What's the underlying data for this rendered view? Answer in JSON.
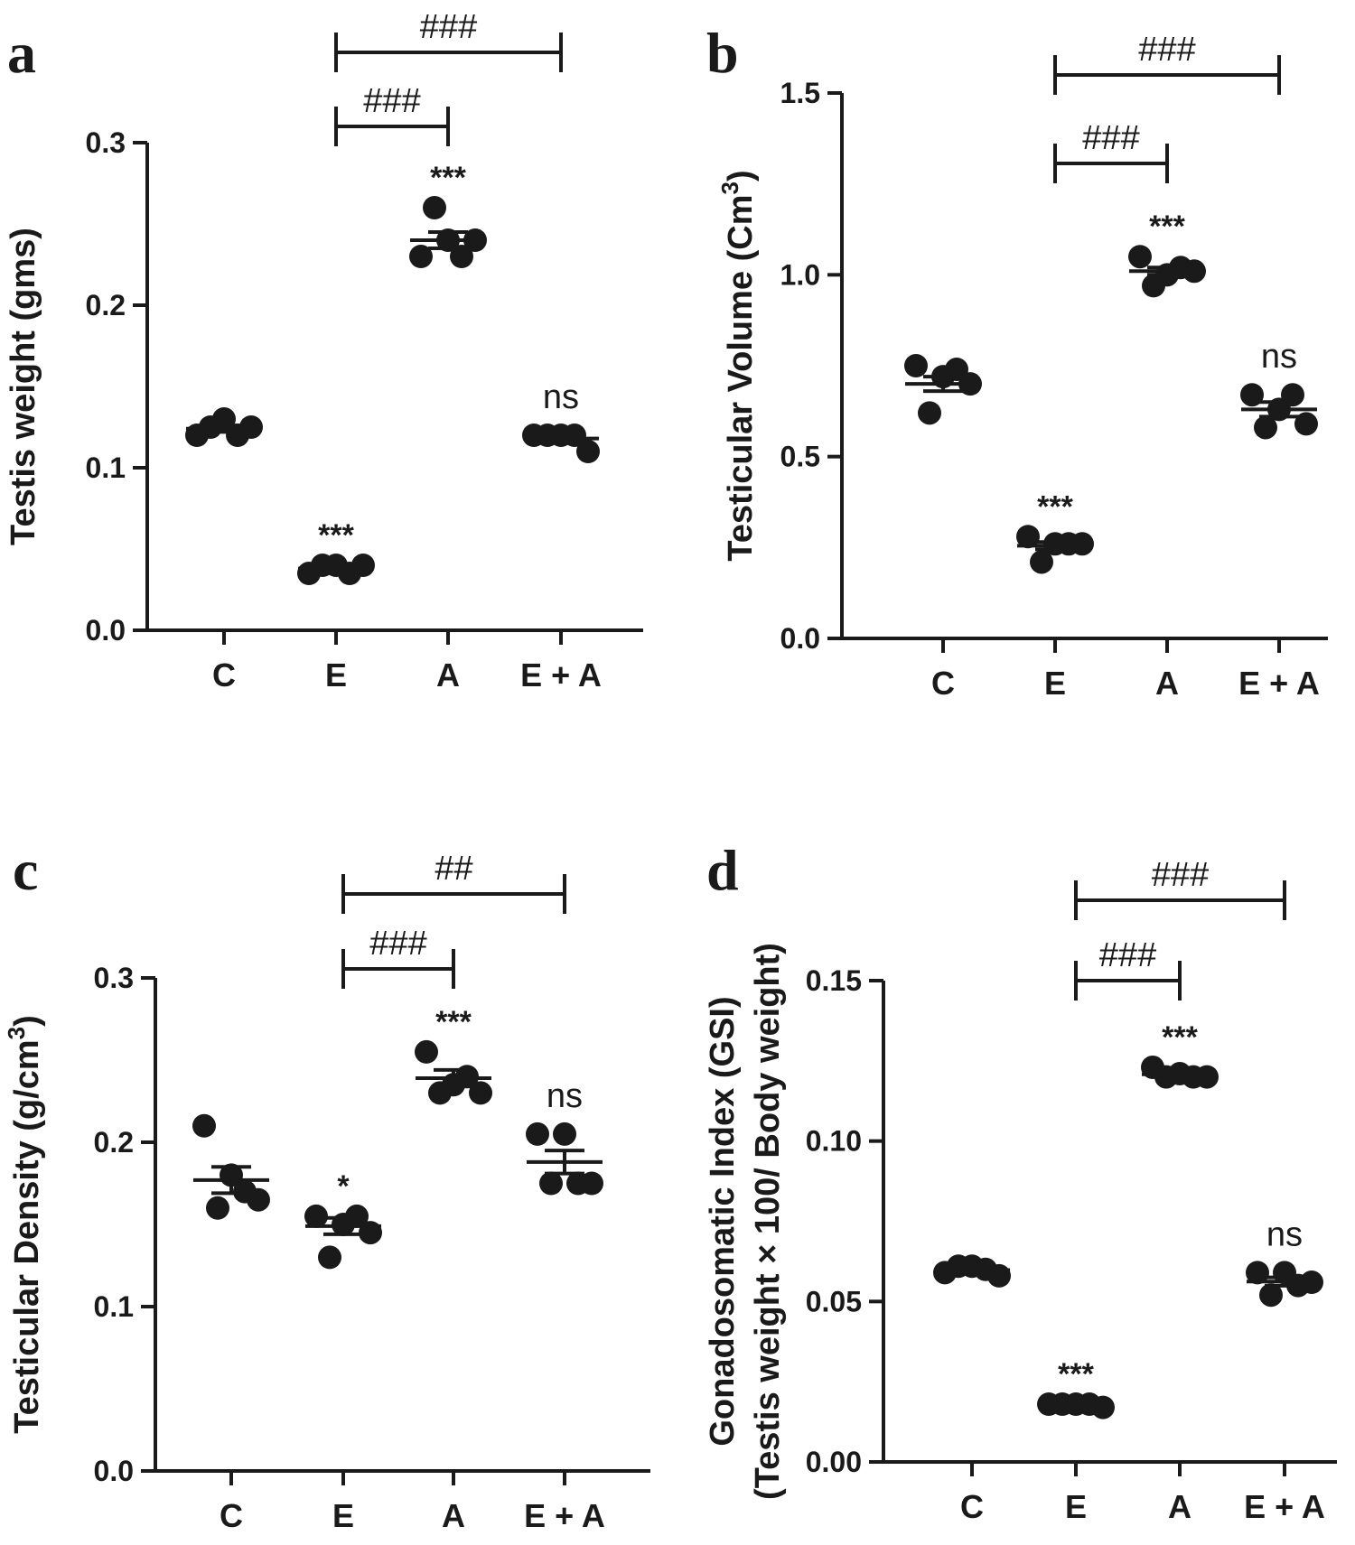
{
  "chart_data": [
    {
      "type": "scatter",
      "panel": "a",
      "title": "",
      "ylabel": "Testis weight (gms)",
      "xlabel": "",
      "categories": [
        "C",
        "E",
        "A",
        "E + A"
      ],
      "ylim": [
        0,
        0.3
      ],
      "yticks": [
        "0.0",
        "0.1",
        "0.2",
        "0.3"
      ],
      "tick_values": [
        0,
        0.1,
        0.2,
        0.3
      ],
      "points": [
        [
          0.12,
          0.125,
          0.13,
          0.12,
          0.125
        ],
        [
          0.035,
          0.04,
          0.04,
          0.035,
          0.04
        ],
        [
          0.23,
          0.26,
          0.24,
          0.23,
          0.24
        ],
        [
          0.12,
          0.12,
          0.12,
          0.12,
          0.11
        ]
      ],
      "mean": [
        0.124,
        0.038,
        0.24,
        0.118
      ],
      "sem": [
        0.002,
        0.001,
        0.005,
        0.002
      ],
      "significance": [
        "",
        "***",
        "***",
        "ns"
      ],
      "comparisons": [
        {
          "from": 1,
          "to": 2,
          "label": "###"
        },
        {
          "from": 1,
          "to": 3,
          "label": "###"
        }
      ],
      "grid": false
    },
    {
      "type": "scatter",
      "panel": "b",
      "title": "",
      "ylabel": "Testicular Volume (Cm",
      "ylabel_sup": "3",
      "ylabel_close": ")",
      "xlabel": "",
      "categories": [
        "C",
        "E",
        "A",
        "E + A"
      ],
      "ylim": [
        0,
        1.5
      ],
      "yticks": [
        "0.0",
        "0.5",
        "1.0",
        "1.5"
      ],
      "tick_values": [
        0,
        0.5,
        1.0,
        1.5
      ],
      "points": [
        [
          0.75,
          0.62,
          0.72,
          0.74,
          0.7
        ],
        [
          0.28,
          0.21,
          0.26,
          0.26,
          0.26
        ],
        [
          1.05,
          0.97,
          1.0,
          1.02,
          1.01
        ],
        [
          0.67,
          0.58,
          0.63,
          0.67,
          0.59
        ]
      ],
      "mean": [
        0.7,
        0.255,
        1.01,
        0.63
      ],
      "sem": [
        0.02,
        0.01,
        0.01,
        0.02
      ],
      "significance": [
        "",
        "***",
        "***",
        "ns"
      ],
      "comparisons": [
        {
          "from": 1,
          "to": 2,
          "label": "###"
        },
        {
          "from": 1,
          "to": 3,
          "label": "###"
        }
      ],
      "grid": false
    },
    {
      "type": "scatter",
      "panel": "c",
      "title": "",
      "ylabel": "Testicular Density (g/cm",
      "ylabel_sup": "3",
      "ylabel_close": ")",
      "xlabel": "",
      "categories": [
        "C",
        "E",
        "A",
        "E + A"
      ],
      "ylim": [
        0,
        0.3
      ],
      "yticks": [
        "0.0",
        "0.1",
        "0.2",
        "0.3"
      ],
      "tick_values": [
        0,
        0.1,
        0.2,
        0.3
      ],
      "points": [
        [
          0.21,
          0.16,
          0.18,
          0.17,
          0.165
        ],
        [
          0.155,
          0.13,
          0.15,
          0.155,
          0.145
        ],
        [
          0.255,
          0.23,
          0.235,
          0.24,
          0.23
        ],
        [
          0.205,
          0.175,
          0.205,
          0.175,
          0.175
        ]
      ],
      "mean": [
        0.177,
        0.149,
        0.239,
        0.188
      ],
      "sem": [
        0.008,
        0.005,
        0.005,
        0.007
      ],
      "significance": [
        "",
        "*",
        "***",
        "ns"
      ],
      "comparisons": [
        {
          "from": 1,
          "to": 2,
          "label": "###"
        },
        {
          "from": 1,
          "to": 3,
          "label": "##"
        }
      ],
      "grid": false
    },
    {
      "type": "scatter",
      "panel": "d",
      "title": "",
      "ylabel": "Gonadosomatic Index (GSI)",
      "ylabel2": "(Testis weight × 100/ Body weight)",
      "xlabel": "",
      "categories": [
        "C",
        "E",
        "A",
        "E + A"
      ],
      "ylim": [
        0,
        0.15
      ],
      "yticks": [
        "0.00",
        "0.05",
        "0.10",
        "0.15"
      ],
      "tick_values": [
        0,
        0.05,
        0.1,
        0.15
      ],
      "points": [
        [
          0.059,
          0.061,
          0.061,
          0.06,
          0.058
        ],
        [
          0.018,
          0.018,
          0.018,
          0.018,
          0.017
        ],
        [
          0.123,
          0.12,
          0.121,
          0.12,
          0.12
        ],
        [
          0.059,
          0.052,
          0.059,
          0.055,
          0.056
        ]
      ],
      "mean": [
        0.0598,
        0.0178,
        0.1208,
        0.0562
      ],
      "sem": [
        0.0006,
        0.0002,
        0.0006,
        0.0013
      ],
      "significance": [
        "",
        "***",
        "***",
        "ns"
      ],
      "comparisons": [
        {
          "from": 1,
          "to": 2,
          "label": "###"
        },
        {
          "from": 1,
          "to": 3,
          "label": "###"
        }
      ],
      "grid": false
    }
  ]
}
